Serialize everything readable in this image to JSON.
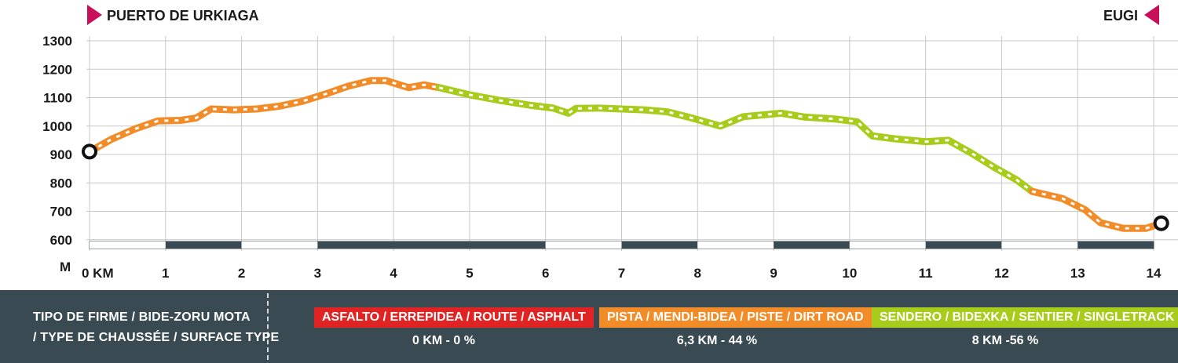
{
  "route": {
    "start": "PUERTO DE URKIAGA",
    "end": "EUGI"
  },
  "chart_data": {
    "type": "area",
    "ylim": [
      580,
      1300
    ],
    "xlim": [
      0,
      14
    ],
    "y_ticks": [
      "1300",
      "1200",
      "1100",
      "1000",
      "900",
      "800",
      "700",
      "600"
    ],
    "y_tick_values": [
      1300,
      1200,
      1100,
      1000,
      900,
      800,
      700,
      600
    ],
    "y_unit": "M",
    "x_ticks": [
      "0 KM",
      "1",
      "2",
      "3",
      "4",
      "5",
      "6",
      "7",
      "8",
      "9",
      "10",
      "11",
      "12",
      "13",
      "14"
    ],
    "x_tick_values": [
      0,
      1,
      2,
      3,
      4,
      5,
      6,
      7,
      8,
      9,
      10,
      11,
      12,
      13,
      14
    ],
    "grid": true,
    "series": [
      {
        "name": "PISTA / MENDI-BIDEA / PISTE / DIRT ROAD",
        "color": "#f28c28",
        "x": [
          0,
          0.3,
          0.6,
          0.9,
          1.2,
          1.4,
          1.6,
          1.9,
          2.2,
          2.5,
          2.8,
          3.1,
          3.4,
          3.7,
          3.9,
          4.2,
          4.4,
          4.6
        ],
        "y": [
          910,
          955,
          990,
          1018,
          1020,
          1028,
          1060,
          1057,
          1060,
          1070,
          1087,
          1112,
          1140,
          1160,
          1160,
          1135,
          1145,
          1135
        ]
      },
      {
        "name": "SENDERO  / BIDEXKA / SENTIER / SINGLETRACK",
        "color": "#a8cc1c",
        "x": [
          4.6,
          5.0,
          5.4,
          5.8,
          6.1,
          6.3,
          6.4,
          6.7,
          7.0,
          7.3,
          7.6,
          7.9,
          8.3,
          8.6,
          9.1,
          9.4,
          9.8,
          10.1,
          10.3,
          10.6,
          11.0,
          11.3,
          11.6,
          11.9,
          12.2,
          12.4
        ],
        "y": [
          1135,
          1110,
          1090,
          1073,
          1063,
          1045,
          1062,
          1063,
          1060,
          1057,
          1050,
          1030,
          1000,
          1033,
          1045,
          1032,
          1025,
          1015,
          965,
          955,
          945,
          950,
          905,
          855,
          810,
          770
        ]
      },
      {
        "name": "PISTA / MENDI-BIDEA / PISTE / DIRT ROAD",
        "color": "#f28c28",
        "x": [
          12.4,
          12.8,
          13.1,
          13.3,
          13.6,
          13.9,
          14.1
        ],
        "y": [
          770,
          745,
          705,
          660,
          640,
          640,
          658
        ]
      }
    ],
    "surface_bar": [
      {
        "from": 0,
        "to": 1,
        "fill": "#ffffff"
      },
      {
        "from": 1,
        "to": 2,
        "fill": "#3a4a52"
      },
      {
        "from": 2,
        "to": 3,
        "fill": "#ffffff"
      },
      {
        "from": 3,
        "to": 5,
        "fill": "#3a4a52"
      },
      {
        "from": 5,
        "to": 6,
        "fill": "#3a4a52"
      },
      {
        "from": 6,
        "to": 7,
        "fill": "#ffffff"
      },
      {
        "from": 7,
        "to": 8,
        "fill": "#3a4a52"
      },
      {
        "from": 8,
        "to": 9,
        "fill": "#ffffff"
      },
      {
        "from": 9,
        "to": 10,
        "fill": "#3a4a52"
      },
      {
        "from": 10,
        "to": 11,
        "fill": "#ffffff"
      },
      {
        "from": 11,
        "to": 12,
        "fill": "#3a4a52"
      },
      {
        "from": 12,
        "to": 13,
        "fill": "#ffffff"
      },
      {
        "from": 13,
        "to": 14,
        "fill": "#3a4a52"
      }
    ]
  },
  "legend": {
    "title_line1": "TIPO DE FIRME / BIDE-ZORU MOTA",
    "title_line2": "/ TYPE DE CHAUSSÉE / SURFACE TYPE",
    "items": [
      {
        "label": "ASFALTO / ERREPIDEA / ROUTE / ASPHALT",
        "color": "#e02424",
        "value": "0 KM - 0 %"
      },
      {
        "label": "PISTA / MENDI-BIDEA / PISTE / DIRT ROAD",
        "color": "#f28c28",
        "value": "6,3 KM - 44 %"
      },
      {
        "label": "SENDERO  / BIDEXKA / SENTIER / SINGLETRACK",
        "color": "#a8cc1c",
        "value": "8 KM -56 %"
      }
    ]
  },
  "colors": {
    "marker": "#c8105a",
    "panel": "#3a4a52",
    "grid": "#c8c8c8"
  },
  "icons": {
    "start_marker": "triangle-right-icon",
    "end_marker": "triangle-left-icon",
    "waypoint": "ring-icon"
  }
}
